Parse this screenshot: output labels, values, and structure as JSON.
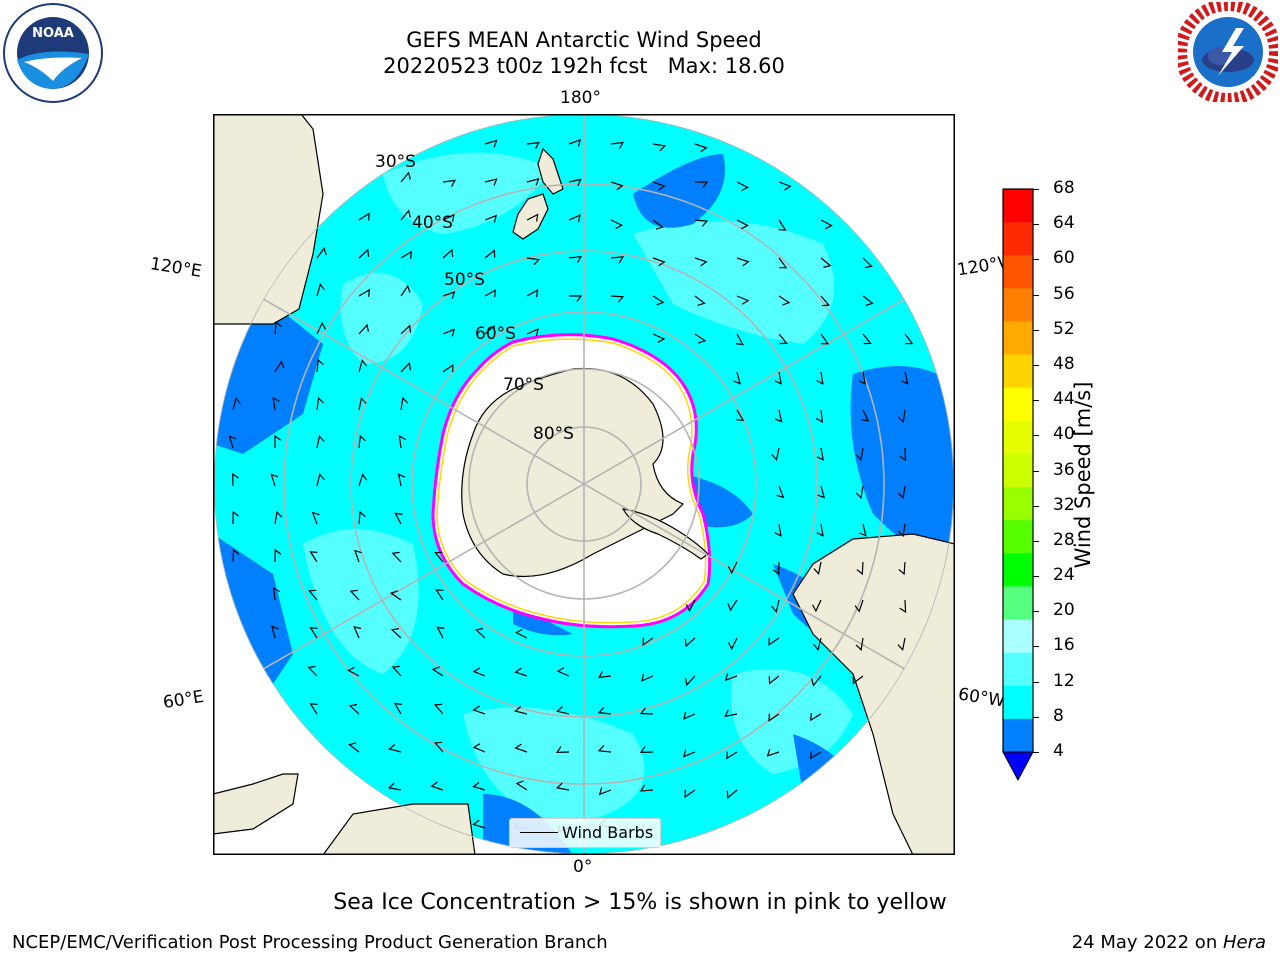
{
  "header": {
    "title_line1": "GEFS MEAN Antarctic Wind Speed",
    "title_line2": "20220523 t00z 192h fcst   Max: 18.60"
  },
  "logos": {
    "left": {
      "name": "noaa-logo",
      "text": "NOAA",
      "ring_text": "NATIONAL OCEANIC AND ATMOSPHERIC ADMINISTRATION · U.S. DEPARTMENT OF COMMERCE"
    },
    "right": {
      "name": "nws-logo",
      "ring_text": "NATIONAL WEATHER SERVICE"
    }
  },
  "map": {
    "projection": "south-polar-stereographic",
    "lon_labels": {
      "top": "180°",
      "bottom": "0°",
      "upper_left": "120°E",
      "upper_right": "120°W",
      "lower_left": "60°E",
      "lower_right": "60°W"
    },
    "lat_labels": [
      "30°S",
      "40°S",
      "50°S",
      "60°S",
      "70°S",
      "80°S"
    ],
    "legend_label": "Wind Barbs",
    "colors": {
      "ocean_light": "#00ffff",
      "ocean_pale": "#55ffff",
      "ocean_dark": "#0080ff",
      "land": "#efecd9",
      "ice": "#ffffff",
      "ice_edge_pink": "#ff00ff",
      "ice_edge_yellow": "#ffd700",
      "grid": "#b4b4b4"
    }
  },
  "colorbar": {
    "label": "Wind Speed [m/s]",
    "ticks": [
      "68",
      "64",
      "60",
      "56",
      "52",
      "48",
      "44",
      "40",
      "36",
      "32",
      "28",
      "24",
      "20",
      "16",
      "12",
      "8",
      "4"
    ],
    "colors_top_to_bottom": [
      "#ff0000",
      "#ff2a00",
      "#ff5500",
      "#ff8000",
      "#ffaa00",
      "#ffd500",
      "#ffff00",
      "#e6ff00",
      "#ccff00",
      "#99ff00",
      "#55ff00",
      "#00ff00",
      "#55ff80",
      "#aaffff",
      "#55ffff",
      "#00ffff",
      "#0080ff"
    ],
    "extend_color": "#0000ff"
  },
  "caption": "Sea Ice Concentration > 15% is shown in pink to yellow",
  "footer": {
    "left": "NCEP/EMC/Verification Post Processing Product Generation Branch",
    "right_prefix": "24 May 2022 on ",
    "right_host": "Hera"
  }
}
